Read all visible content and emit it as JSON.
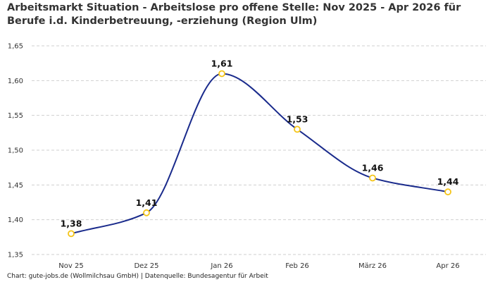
{
  "chart_data": {
    "type": "line",
    "title_line1": "Arbeitsmarkt Situation - Arbeitslose pro offene Stelle: Nov 2025 - Apr 2026 für",
    "title_line2": "Berufe i.d. Kinderbetreuung, -erziehung (Region Ulm)",
    "categories": [
      "Nov 25",
      "Dez 25",
      "Jan 26",
      "Feb 26",
      "März 26",
      "Apr 26"
    ],
    "series": [
      {
        "values": [
          1.38,
          1.41,
          1.61,
          1.53,
          1.46,
          1.44
        ]
      }
    ],
    "data_labels": [
      "1,38",
      "1,41",
      "1,61",
      "1,53",
      "1,46",
      "1,44"
    ],
    "ylim": [
      1.35,
      1.65
    ],
    "yticks": [
      1.35,
      1.4,
      1.45,
      1.5,
      1.55,
      1.6,
      1.65
    ],
    "ytick_labels": [
      "1,35",
      "1,40",
      "1,45",
      "1,50",
      "1,55",
      "1,60",
      "1,65"
    ],
    "grid": true,
    "line_color": "#1a2b8c",
    "marker_color": "#f5c518"
  },
  "footer": "Chart: gute-jobs.de (Wollmilchsau GmbH) | Datenquelle: Bundesagentur für Arbeit"
}
